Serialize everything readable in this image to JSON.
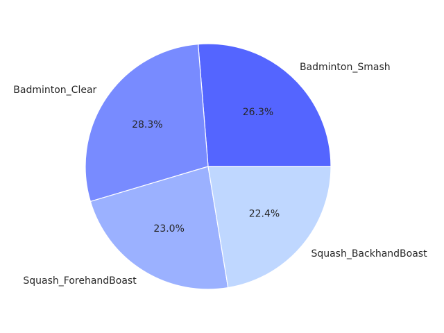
{
  "chart_data": {
    "type": "pie",
    "title": "",
    "start_angle_deg": 0,
    "direction": "counterclockwise",
    "slices": [
      {
        "label": "Badminton_Smash",
        "value": 26.3,
        "pct_label": "26.3%",
        "color": "#5465ff"
      },
      {
        "label": "Badminton_Clear",
        "value": 28.3,
        "pct_label": "28.3%",
        "color": "#788bff"
      },
      {
        "label": "Squash_ForehandBoast",
        "value": 23.0,
        "pct_label": "23.0%",
        "color": "#9bb1ff"
      },
      {
        "label": "Squash_BackhandBoast",
        "value": 22.4,
        "pct_label": "22.4%",
        "color": "#bfd7ff"
      }
    ]
  }
}
